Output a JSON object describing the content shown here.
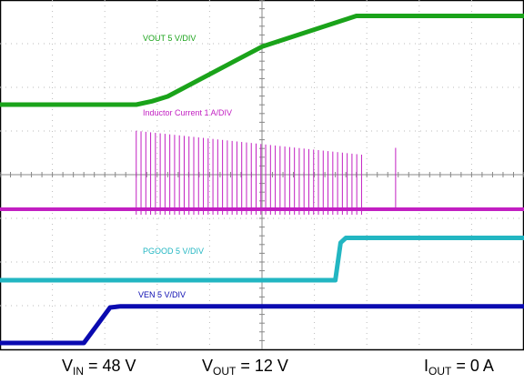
{
  "chart_data": {
    "type": "line",
    "x_range": [
      0,
      10
    ],
    "grid": true,
    "series": [
      {
        "name": "VOUT 5 V/DIV",
        "color": "#1aa31a",
        "label_text": "VOUT  5 V/DIV",
        "points": [
          [
            0,
            0
          ],
          [
            2.6,
            0
          ],
          [
            2.9,
            0.05
          ],
          [
            3.2,
            0.12
          ],
          [
            5.0,
            0.85
          ],
          [
            6.6,
            1.25
          ],
          [
            6.8,
            1.3
          ],
          [
            10,
            1.3
          ]
        ]
      },
      {
        "name": "Inductor Current 1 A/DIV",
        "color": "#c21fc2",
        "label_text": "Inductor Current 1 A/DIV",
        "baseline": 0,
        "pulse_start": 2.6,
        "pulse_end": 6.9,
        "pulse_height_start": 1.15,
        "pulse_height_end": 0.8,
        "extra_pulse": [
          7.55,
          0.9
        ]
      },
      {
        "name": "PGOOD 5 V/DIV",
        "color": "#22b6c2",
        "label_text": "PGOOD 5 V/DIV",
        "points": [
          [
            0,
            0
          ],
          [
            6.4,
            0
          ],
          [
            6.5,
            0.55
          ],
          [
            6.6,
            0.62
          ],
          [
            10,
            0.62
          ]
        ]
      },
      {
        "name": "VEN 5 V/DIV",
        "color": "#0a0ab0",
        "label_text": "VEN 5 V/DIV",
        "points": [
          [
            0,
            0
          ],
          [
            1.6,
            0
          ],
          [
            2.1,
            0.6
          ],
          [
            2.3,
            0.62
          ],
          [
            10,
            0.62
          ]
        ]
      }
    ],
    "captions": {
      "vin": {
        "main": "V",
        "sub": "IN",
        "rest": " = 48 V"
      },
      "vout": {
        "main": "V",
        "sub": "OUT",
        "rest": " = 12 V"
      },
      "iout": {
        "main": "I",
        "sub": "OUT",
        "rest": " = 0 A"
      }
    }
  }
}
